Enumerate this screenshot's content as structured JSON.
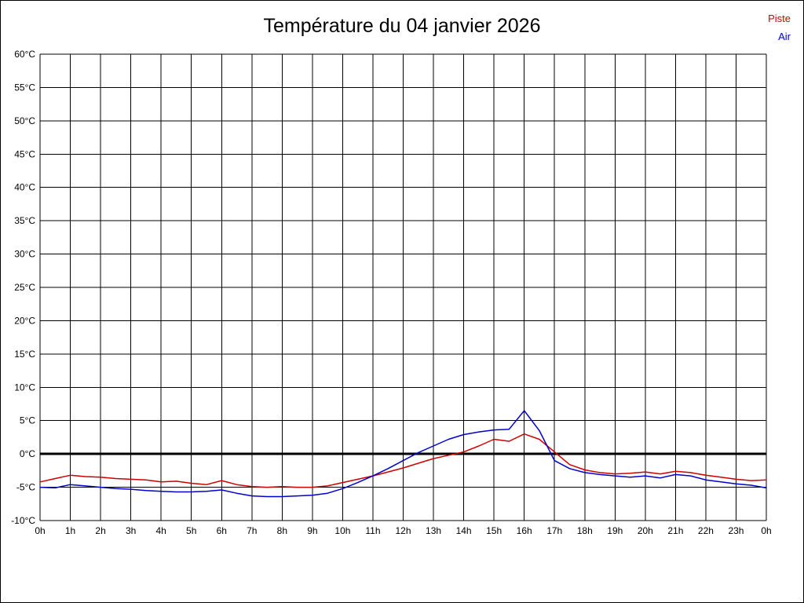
{
  "title": "Température du 04 janvier 2026",
  "legend": {
    "piste_label": "Piste",
    "air_label": "Air"
  },
  "colors": {
    "piste": "#cc0000",
    "air": "#0000cc",
    "grid": "#000000",
    "zero_line": "#000000",
    "background": "#ffffff"
  },
  "chart_data": {
    "type": "line",
    "title": "Température du 04 janvier 2026",
    "xlabel": "",
    "ylabel": "",
    "xlim": [
      0,
      24
    ],
    "ylim": [
      -10,
      60
    ],
    "grid": true,
    "legend_position": "top-right",
    "x_tick_labels": [
      "0h",
      "1h",
      "2h",
      "3h",
      "4h",
      "5h",
      "6h",
      "7h",
      "8h",
      "9h",
      "10h",
      "11h",
      "12h",
      "13h",
      "14h",
      "15h",
      "16h",
      "17h",
      "18h",
      "19h",
      "20h",
      "21h",
      "22h",
      "23h",
      "0h"
    ],
    "y_tick_labels": [
      "-10°C",
      "-5°C",
      "0°C",
      "5°C",
      "10°C",
      "15°C",
      "20°C",
      "25°C",
      "30°C",
      "35°C",
      "40°C",
      "45°C",
      "50°C",
      "55°C",
      "60°C"
    ],
    "x": [
      0,
      0.5,
      1,
      1.5,
      2,
      2.5,
      3,
      3.5,
      4,
      4.5,
      5,
      5.5,
      6,
      6.5,
      7,
      7.5,
      8,
      8.5,
      9,
      9.5,
      10,
      10.5,
      11,
      11.5,
      12,
      12.5,
      13,
      13.5,
      14,
      14.5,
      15,
      15.5,
      16,
      16.5,
      17,
      17.5,
      18,
      18.5,
      19,
      19.5,
      20,
      20.5,
      21,
      21.5,
      22,
      22.5,
      23,
      23.5,
      24
    ],
    "series": [
      {
        "name": "Piste",
        "color": "#cc0000",
        "values": [
          -4.2,
          -3.7,
          -3.2,
          -3.4,
          -3.5,
          -3.7,
          -3.8,
          -3.9,
          -4.2,
          -4.1,
          -4.4,
          -4.6,
          -4.0,
          -4.6,
          -4.9,
          -5.0,
          -4.9,
          -5.0,
          -5.0,
          -4.8,
          -4.3,
          -3.8,
          -3.3,
          -2.7,
          -2.1,
          -1.4,
          -0.7,
          -0.2,
          0.3,
          1.2,
          2.2,
          1.9,
          3.0,
          2.2,
          0.3,
          -1.6,
          -2.4,
          -2.8,
          -3.0,
          -2.9,
          -2.7,
          -3.0,
          -2.6,
          -2.8,
          -3.2,
          -3.5,
          -3.8,
          -4.0,
          -3.9
        ]
      },
      {
        "name": "Air",
        "color": "#0000cc",
        "values": [
          -5.0,
          -5.1,
          -4.6,
          -4.8,
          -5.0,
          -5.2,
          -5.3,
          -5.5,
          -5.6,
          -5.7,
          -5.7,
          -5.6,
          -5.4,
          -5.9,
          -6.3,
          -6.4,
          -6.4,
          -6.3,
          -6.2,
          -5.9,
          -5.2,
          -4.3,
          -3.3,
          -2.2,
          -1.0,
          0.2,
          1.2,
          2.2,
          2.9,
          3.3,
          3.6,
          3.7,
          6.5,
          3.5,
          -1.0,
          -2.2,
          -2.8,
          -3.1,
          -3.3,
          -3.5,
          -3.3,
          -3.6,
          -3.1,
          -3.3,
          -3.9,
          -4.2,
          -4.5,
          -4.7,
          -5.1
        ]
      }
    ]
  }
}
